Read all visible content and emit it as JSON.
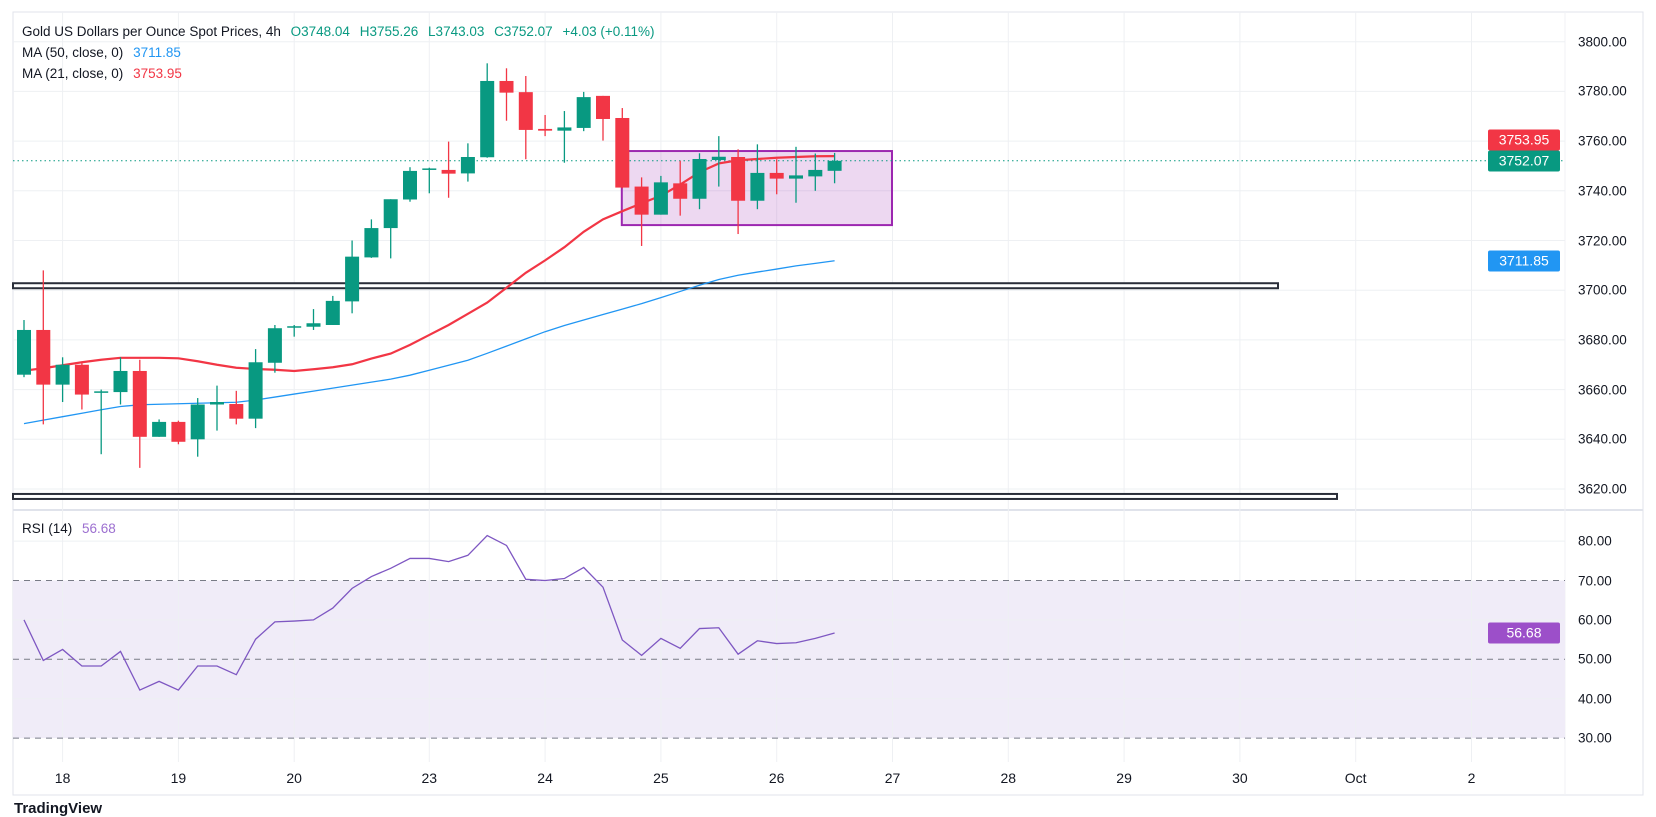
{
  "header": {
    "title": "Gold US Dollars per Ounce Spot Prices, 4h",
    "open": "O3748.04",
    "high": "H3755.26",
    "low": "L3743.03",
    "close": "C3752.07",
    "change": "+4.03 (+0.11%)"
  },
  "indicators": {
    "ma50": {
      "label": "MA (50, close, 0)",
      "value": "3711.85"
    },
    "ma21": {
      "label": "MA (21, close, 0)",
      "value": "3753.95"
    },
    "rsi": {
      "label": "RSI (14)",
      "value": "56.68"
    }
  },
  "price_axis": [
    "3800.00",
    "3780.00",
    "3760.00",
    "3740.00",
    "3720.00",
    "3700.00",
    "3680.00",
    "3660.00",
    "3640.00",
    "3620.00"
  ],
  "rsi_axis": [
    "80.00",
    "70.00",
    "60.00",
    "50.00",
    "40.00",
    "30.00"
  ],
  "tags": {
    "ma21": "3753.95",
    "last": "3752.07",
    "ma50": "3711.85",
    "rsi": "56.68"
  },
  "date_axis": [
    {
      "label": "18",
      "index": 2
    },
    {
      "label": "19",
      "index": 8
    },
    {
      "label": "20",
      "index": 14
    },
    {
      "label": "23",
      "index": 21
    },
    {
      "label": "24",
      "index": 27
    },
    {
      "label": "25",
      "index": 33
    },
    {
      "label": "26",
      "index": 39
    },
    {
      "label": "27",
      "index": 45
    },
    {
      "label": "28",
      "index": 51
    },
    {
      "label": "29",
      "index": 57
    },
    {
      "label": "30",
      "index": 63
    },
    {
      "label": "Oct",
      "index": 69
    },
    {
      "label": "2",
      "index": 75
    }
  ],
  "footer": {
    "brand": "TradingView"
  },
  "colors": {
    "up": "#089981",
    "down": "#f23645",
    "ma21": "#f23645",
    "ma50": "#2196f3",
    "rsi": "#7e57c2",
    "box": "#9c27b0",
    "level": "#2a2e39"
  },
  "chart_data": {
    "type": "candlestick",
    "title": "Gold US Dollars per Ounce Spot Prices, 4h",
    "ylim": [
      3610,
      3805
    ],
    "candles_ohlc": [
      [
        3666,
        3688,
        3665,
        3684
      ],
      [
        3684,
        3708,
        3646,
        3662
      ],
      [
        3662,
        3673,
        3655,
        3670
      ],
      [
        3670,
        3671,
        3652,
        3658
      ],
      [
        3659,
        3660,
        3634,
        3659.3
      ],
      [
        3659,
        3673,
        3654,
        3667.5
      ],
      [
        3667.5,
        3672,
        3628.5,
        3641
      ],
      [
        3641,
        3648,
        3641,
        3647
      ],
      [
        3647,
        3647.5,
        3638,
        3639
      ],
      [
        3640,
        3656.6,
        3633,
        3654
      ],
      [
        3654,
        3661.6,
        3643.5,
        3655
      ],
      [
        3654.2,
        3659.5,
        3646,
        3648.3
      ],
      [
        3648.3,
        3676.3,
        3644.5,
        3671
      ],
      [
        3670.8,
        3686,
        3666.8,
        3684.7
      ],
      [
        3685,
        3686,
        3681.3,
        3685.5
      ],
      [
        3685.3,
        3692.4,
        3684,
        3686.7
      ],
      [
        3686,
        3697.7,
        3686,
        3695.7
      ],
      [
        3695.5,
        3720,
        3690.7,
        3713.5
      ],
      [
        3713.2,
        3728.5,
        3713,
        3725
      ],
      [
        3725,
        3736.6,
        3712.8,
        3736.6
      ],
      [
        3736.5,
        3749.5,
        3735.6,
        3748
      ],
      [
        3748.5,
        3749.3,
        3739,
        3749
      ],
      [
        3748.4,
        3759.8,
        3737.2,
        3746.9
      ],
      [
        3747,
        3759.1,
        3743.7,
        3753.6
      ],
      [
        3753.5,
        3791.3,
        3753.3,
        3784.2
      ],
      [
        3784.2,
        3789.3,
        3768.2,
        3779.5
      ],
      [
        3779.7,
        3786.2,
        3752.7,
        3764.5
      ],
      [
        3764.9,
        3770.5,
        3762,
        3764.2
      ],
      [
        3764.2,
        3772.1,
        3751.3,
        3765.5
      ],
      [
        3765.3,
        3779.8,
        3764,
        3777.7
      ],
      [
        3778.2,
        3778.2,
        3760.2,
        3768.9
      ],
      [
        3769.3,
        3773.3,
        3741,
        3741.3
      ],
      [
        3741.7,
        3745.4,
        3717.8,
        3730.4
      ],
      [
        3730.4,
        3746,
        3730.4,
        3743.4
      ],
      [
        3743,
        3752.1,
        3730,
        3736.8
      ],
      [
        3736.8,
        3755.1,
        3732.6,
        3752.8
      ],
      [
        3752.4,
        3762,
        3741.7,
        3753.7
      ],
      [
        3753.6,
        3756.7,
        3722.6,
        3736
      ],
      [
        3736,
        3758.7,
        3732.6,
        3747.2
      ],
      [
        3747.2,
        3752.7,
        3738.6,
        3744.9
      ],
      [
        3744.9,
        3757.7,
        3735.2,
        3746.2
      ],
      [
        3745.8,
        3755,
        3740,
        3748.4
      ],
      [
        3748.04,
        3755.26,
        3743.03,
        3752.07
      ]
    ],
    "ma21": [
      3667.6,
      3668.6,
      3669.8,
      3671,
      3672,
      3672.8,
      3672.8,
      3672.8,
      3672.6,
      3671.4,
      3670,
      3668.8,
      3668.3,
      3668,
      3667.5,
      3668.2,
      3669,
      3670.2,
      3672.5,
      3674.5,
      3678,
      3682,
      3686,
      3690.5,
      3695,
      3701,
      3707,
      3712,
      3717.3,
      3723.5,
      3728.5,
      3731.8,
      3735,
      3738,
      3742.5,
      3747.5,
      3751,
      3752.3,
      3752.8,
      3753.3,
      3753.6,
      3753.9,
      3753.95
    ],
    "ma50": [
      3646.3,
      3647.7,
      3649.1,
      3650.5,
      3651.9,
      3653.2,
      3653.9,
      3654.1,
      3654.3,
      3654.5,
      3654.7,
      3654.9,
      3655.8,
      3657,
      3658.2,
      3659.4,
      3660.6,
      3661.8,
      3663,
      3664.2,
      3665.8,
      3667.8,
      3669.8,
      3671.8,
      3674.6,
      3677.5,
      3680.4,
      3683.3,
      3685.8,
      3688,
      3690.2,
      3692.4,
      3694.6,
      3697,
      3699.5,
      3702,
      3704.3,
      3706,
      3707.3,
      3708.5,
      3709.8,
      3710.8,
      3711.85
    ],
    "rsi": [
      60,
      49.7,
      52.5,
      48.3,
      48.3,
      52,
      42.2,
      44.4,
      42.2,
      48.3,
      48.3,
      46.1,
      55.1,
      59.5,
      59.7,
      60,
      63,
      68,
      71,
      73.1,
      75.6,
      75.6,
      74.8,
      76.4,
      81.4,
      78.9,
      70.3,
      70,
      70.5,
      73.3,
      68.3,
      54.9,
      51,
      55.3,
      52.8,
      57.8,
      58,
      51.3,
      54.7,
      54,
      54.2,
      55.3,
      56.68
    ],
    "rsi_levels": [
      70,
      50,
      30
    ],
    "horizontal_levels": [
      3701.8,
      3617
    ],
    "consolidation_box": {
      "from_index": 31,
      "to_index": 45,
      "top": 3756,
      "bottom": 3726.2
    },
    "last_price": 3752.07
  }
}
